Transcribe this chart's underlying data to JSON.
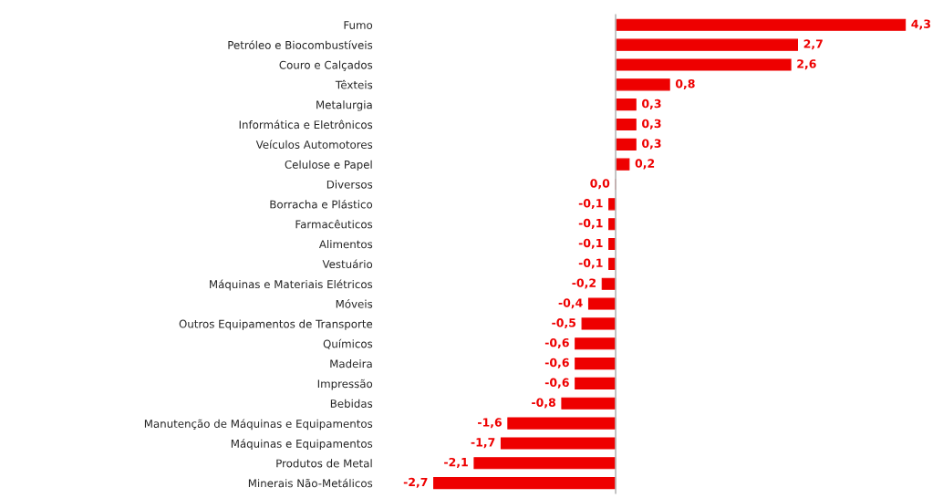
{
  "chart_data": {
    "type": "bar",
    "orientation": "horizontal",
    "color": "#ee0000",
    "categories": [
      "Fumo",
      "Petróleo e Biocombustíveis",
      "Couro e Calçados",
      "Têxteis",
      "Metalurgia",
      "Informática e Eletrônicos",
      "Veículos Automotores",
      "Celulose e Papel",
      "Diversos",
      "Borracha e Plástico",
      "Farmacêuticos",
      "Alimentos",
      "Vestuário",
      "Máquinas e Materiais Elétricos",
      "Móveis",
      "Outros Equipamentos de Transporte",
      "Químicos",
      "Madeira",
      "Impressão",
      "Bebidas",
      "Manutenção de Máquinas e Equipamentos",
      "Máquinas e Equipamentos",
      "Produtos de Metal",
      "Minerais Não-Metálicos"
    ],
    "values": [
      4.3,
      2.7,
      2.6,
      0.8,
      0.3,
      0.3,
      0.3,
      0.2,
      0.0,
      -0.1,
      -0.1,
      -0.1,
      -0.1,
      -0.2,
      -0.4,
      -0.5,
      -0.6,
      -0.6,
      -0.6,
      -0.8,
      -1.6,
      -1.7,
      -2.1,
      -2.7
    ],
    "value_labels": [
      "4,3",
      "2,7",
      "2,6",
      "0,8",
      "0,3",
      "0,3",
      "0,3",
      "0,2",
      "0,0",
      "-0,1",
      "-0,1",
      "-0,1",
      "-0,1",
      "-0,2",
      "-0,4",
      "-0,5",
      "-0,6",
      "-0,6",
      "-0,6",
      "-0,8",
      "-1,6",
      "-1,7",
      "-2,1",
      "-2,7"
    ],
    "tick_labels": "y",
    "grid": false,
    "legend": false
  }
}
